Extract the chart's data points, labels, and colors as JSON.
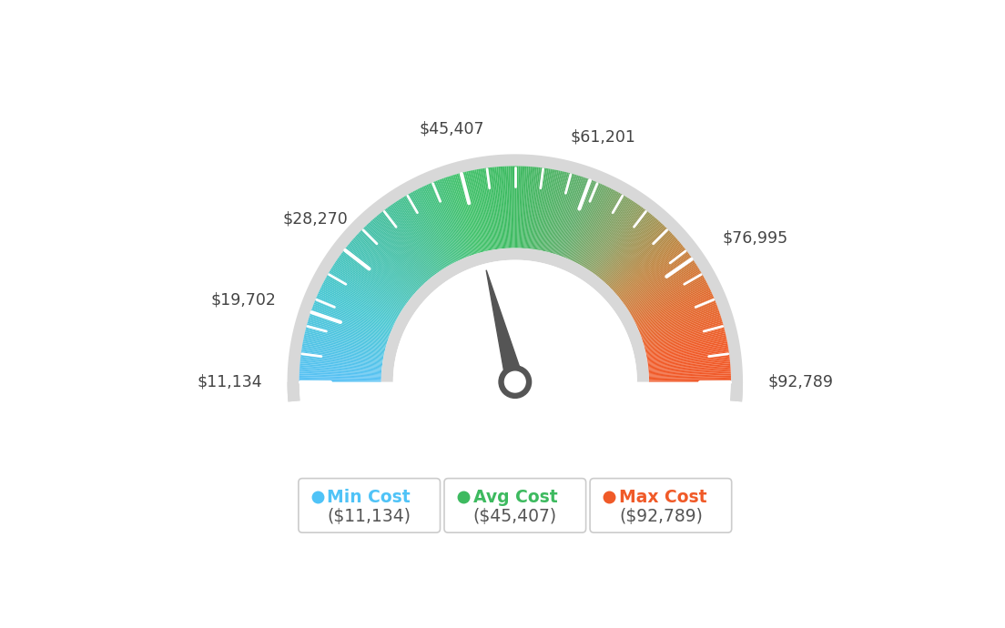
{
  "min_val": 11134,
  "max_val": 92789,
  "avg_val": 45407,
  "labels": [
    "$11,134",
    "$19,702",
    "$28,270",
    "$45,407",
    "$61,201",
    "$76,995",
    "$92,789"
  ],
  "label_values": [
    11134,
    19702,
    28270,
    45407,
    61201,
    76995,
    92789
  ],
  "min_cost_label": "Min Cost",
  "avg_cost_label": "Avg Cost",
  "max_cost_label": "Max Cost",
  "min_cost_value": "($11,134)",
  "avg_cost_value": "($45,407)",
  "max_cost_value": "($92,789)",
  "min_color": "#4fc3f7",
  "avg_color": "#3dba5f",
  "max_color": "#f05a28",
  "background_color": "#ffffff",
  "needle_value": 45407,
  "color_stops": [
    [
      180,
      [
        0.35,
        0.76,
        0.96
      ]
    ],
    [
      155,
      [
        0.28,
        0.78,
        0.82
      ]
    ],
    [
      130,
      [
        0.27,
        0.75,
        0.63
      ]
    ],
    [
      105,
      [
        0.26,
        0.76,
        0.42
      ]
    ],
    [
      90,
      [
        0.24,
        0.73,
        0.38
      ]
    ],
    [
      70,
      [
        0.38,
        0.68,
        0.42
      ]
    ],
    [
      55,
      [
        0.55,
        0.62,
        0.38
      ]
    ],
    [
      40,
      [
        0.75,
        0.52,
        0.25
      ]
    ],
    [
      25,
      [
        0.88,
        0.42,
        0.18
      ]
    ],
    [
      10,
      [
        0.94,
        0.36,
        0.16
      ]
    ],
    [
      0,
      [
        0.94,
        0.35,
        0.16
      ]
    ]
  ]
}
